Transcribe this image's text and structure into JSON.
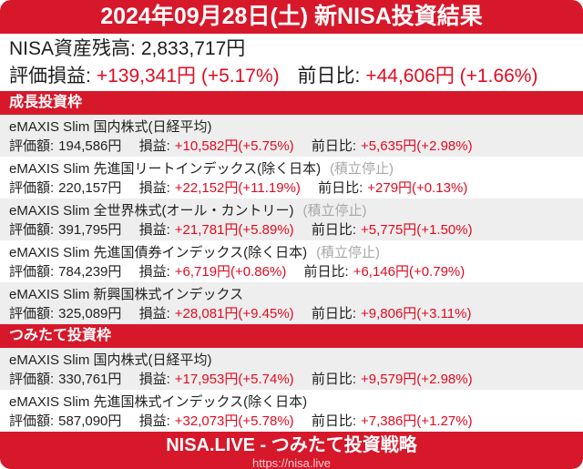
{
  "colors": {
    "band_red": "#d7182b",
    "value_red": "#e30b20",
    "row_gray": "#efeeee",
    "muted_gray": "#a8a8a8",
    "text_black": "#1d1d1d"
  },
  "header": {
    "title": "2024年09月28日(土) 新NISA投資結果"
  },
  "summary": {
    "balance_label": "NISA資産残高:",
    "balance_value": "2,833,717円",
    "pl_label": "評価損益:",
    "pl_value": "+139,341円 (+5.17%)",
    "dod_label": "前日比:",
    "dod_value": "+44,606円 (+1.66%)"
  },
  "labels": {
    "valuation": "評価額:",
    "pl": "損益:",
    "dod": "前日比:"
  },
  "sections": [
    {
      "title": "成長投資枠",
      "funds": [
        {
          "name": "eMAXIS Slim 国内株式(日経平均)",
          "suspended": "",
          "valuation": "194,586円",
          "pl": "+10,582円(+5.75%)",
          "dod": "+5,635円(+2.98%)"
        },
        {
          "name": "eMAXIS Slim 先進国リートインデックス(除く日本)",
          "suspended": "(積立停止)",
          "valuation": "220,157円",
          "pl": "+22,152円(+11.19%)",
          "dod": "+279円(+0.13%)"
        },
        {
          "name": "eMAXIS Slim 全世界株式(オール・カントリー)",
          "suspended": "(積立停止)",
          "valuation": "391,795円",
          "pl": "+21,781円(+5.89%)",
          "dod": "+5,775円(+1.50%)"
        },
        {
          "name": "eMAXIS Slim 先進国債券インデックス(除く日本)",
          "suspended": "(積立停止)",
          "valuation": "784,239円",
          "pl": "+6,719円(+0.86%)",
          "dod": "+6,146円(+0.79%)"
        },
        {
          "name": "eMAXIS Slim 新興国株式インデックス",
          "suspended": "",
          "valuation": "325,089円",
          "pl": "+28,081円(+9.45%)",
          "dod": "+9,806円(+3.11%)"
        }
      ]
    },
    {
      "title": "つみたて投資枠",
      "funds": [
        {
          "name": "eMAXIS Slim 国内株式(日経平均)",
          "suspended": "",
          "valuation": "330,761円",
          "pl": "+17,953円(+5.74%)",
          "dod": "+9,579円(+2.98%)"
        },
        {
          "name": "eMAXIS Slim 先進国株式インデックス(除く日本)",
          "suspended": "",
          "valuation": "587,090円",
          "pl": "+32,073円(+5.78%)",
          "dod": "+7,386円(+1.27%)"
        }
      ]
    }
  ],
  "footer": {
    "title": "NISA.LIVE - つみたて投資戦略",
    "url": "https://nisa.live"
  }
}
